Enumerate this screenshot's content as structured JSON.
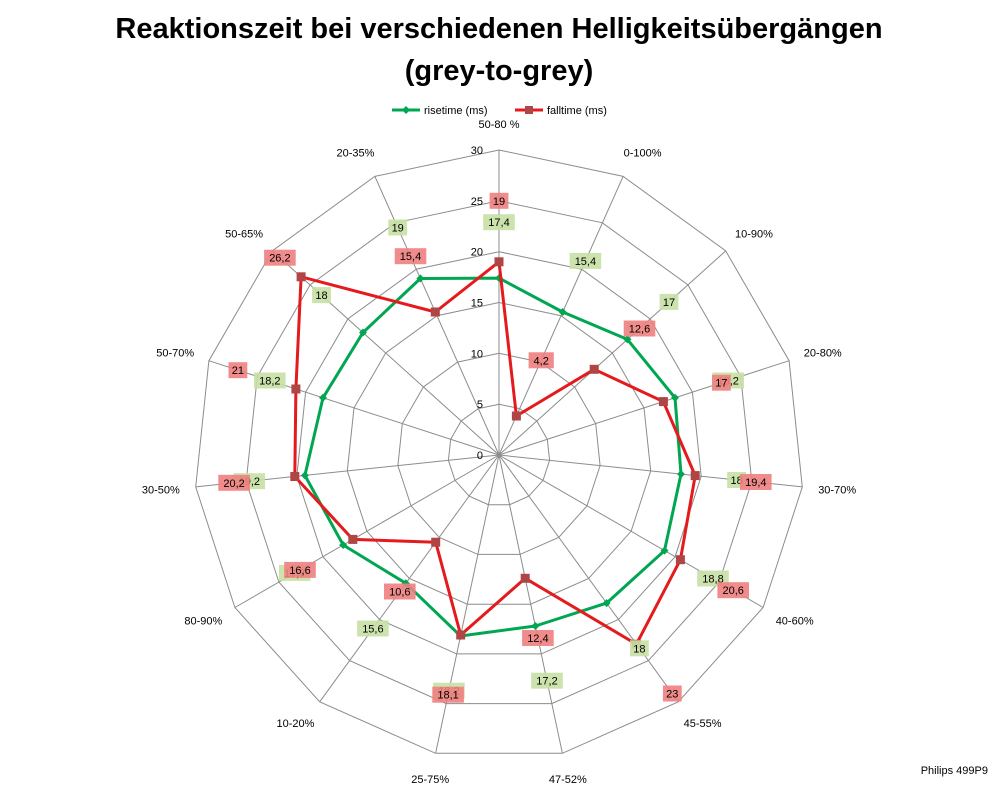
{
  "chart_data": {
    "type": "radar",
    "title_lines": [
      "Reaktionszeit bei verschiedenen Helligkeitsübergängen",
      "(grey-to-grey)"
    ],
    "categories": [
      "50-80 %",
      "0-100%",
      "10-90%",
      "20-80%",
      "30-70%",
      "40-60%",
      "45-55%",
      "47-52%",
      "25-75%",
      "10-20%",
      "80-90%",
      "30-50%",
      "50-70%",
      "50-65%",
      "20-35%"
    ],
    "radial_ticks": [
      "0",
      "5",
      "10",
      "15",
      "20",
      "25",
      "30"
    ],
    "rmax": 30,
    "series": [
      {
        "name": "risetime (ms)",
        "color": "#00a651",
        "label_bg": "#c6e0a4",
        "values": [
          17.4,
          15.4,
          17,
          18.2,
          18,
          18.8,
          18,
          17.2,
          18.2,
          15.6,
          17.7,
          19.2,
          18.2,
          18,
          19
        ],
        "labels": [
          "17,4",
          "15,4",
          "17",
          "18,2",
          "18",
          "18,8",
          "18",
          "17,2",
          "18,2",
          "15,6",
          "17,7",
          "19,2",
          "18,2",
          "18",
          "19"
        ]
      },
      {
        "name": "falltime (ms)",
        "color": "#e41a1c",
        "label_bg": "#f08080",
        "values": [
          19,
          4.2,
          12.6,
          17,
          19.4,
          20.6,
          23,
          12.4,
          18.1,
          10.6,
          16.6,
          20.2,
          21,
          26.2,
          15.4
        ],
        "labels": [
          "19",
          "4,2",
          "12,6",
          "17",
          "19,4",
          "20,6",
          "23",
          "12,4",
          "18,1",
          "10,6",
          "16,6",
          "20,2",
          "21",
          "26,2",
          "15,4"
        ]
      }
    ],
    "legend_position": "top",
    "grid": true
  },
  "footer": {
    "credit": "Philips 499P9"
  }
}
